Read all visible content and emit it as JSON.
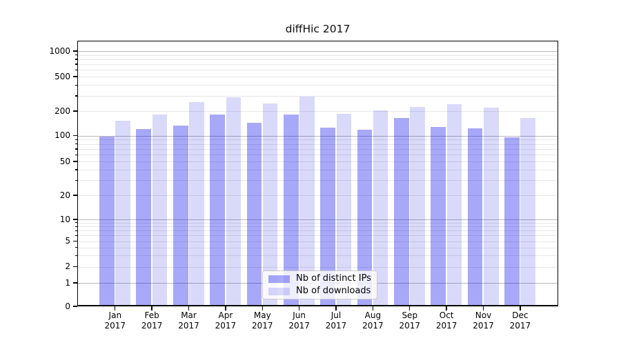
{
  "chart_data": {
    "type": "bar",
    "title": "diffHic 2017",
    "xlabel": "",
    "ylabel": "",
    "yscale": "symlog",
    "grid": true,
    "legend_position": "bottom-center",
    "yticks": [
      0,
      1,
      2,
      5,
      10,
      20,
      50,
      100,
      200,
      500,
      1000
    ],
    "ylim": [
      0,
      1300
    ],
    "categories": [
      "Jan 2017",
      "Feb 2017",
      "Mar 2017",
      "Apr 2017",
      "May 2017",
      "Jun 2017",
      "Jul 2017",
      "Aug 2017",
      "Sep 2017",
      "Oct 2017",
      "Nov 2017",
      "Dec 2017"
    ],
    "series": [
      {
        "name": "Nb of distinct IPs",
        "color": "#0000eb",
        "alpha": 0.34,
        "composited_color": "#a8a8f8",
        "values": [
          97,
          120,
          132,
          180,
          144,
          180,
          125,
          118,
          166,
          128,
          123,
          95
        ]
      },
      {
        "name": "Nb of downloads",
        "color": "#0000e0",
        "alpha": 0.15,
        "composited_color": "#d9d9fa",
        "values": [
          153,
          180,
          256,
          287,
          245,
          296,
          186,
          203,
          223,
          239,
          221,
          164
        ]
      }
    ]
  }
}
